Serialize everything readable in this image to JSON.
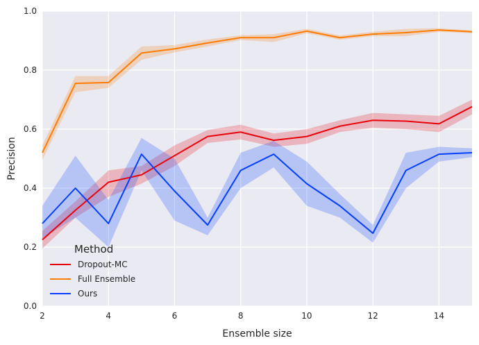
{
  "chart_data": {
    "type": "line",
    "title": "",
    "xlabel": "Ensemble size",
    "ylabel": "Precision",
    "xlim": [
      2,
      15
    ],
    "ylim": [
      0.0,
      1.0
    ],
    "xticks": [
      2,
      4,
      6,
      8,
      10,
      12,
      14
    ],
    "yticks": [
      0.0,
      0.2,
      0.4,
      0.6,
      0.8,
      1.0
    ],
    "xtick_labels": [
      "2",
      "4",
      "6",
      "8",
      "10",
      "12",
      "14"
    ],
    "ytick_labels": [
      "0.0",
      "0.2",
      "0.4",
      "0.6",
      "0.8",
      "1.0"
    ],
    "grid": true,
    "legend": {
      "title": "Method",
      "placement": "lower-left"
    },
    "x": [
      2,
      3,
      4,
      5,
      6,
      7,
      8,
      9,
      10,
      11,
      12,
      13,
      14,
      15
    ],
    "series": [
      {
        "name": "Dropout-MC",
        "color": "#e8000b",
        "values": [
          0.225,
          0.325,
          0.42,
          0.445,
          0.51,
          0.575,
          0.59,
          0.562,
          0.575,
          0.61,
          0.63,
          0.627,
          0.618,
          0.676
        ],
        "lower": [
          0.195,
          0.3,
          0.37,
          0.415,
          0.475,
          0.553,
          0.565,
          0.54,
          0.55,
          0.59,
          0.605,
          0.6,
          0.59,
          0.65
        ],
        "upper": [
          0.255,
          0.355,
          0.46,
          0.475,
          0.545,
          0.597,
          0.615,
          0.585,
          0.6,
          0.63,
          0.655,
          0.65,
          0.645,
          0.7
        ]
      },
      {
        "name": "Full Ensemble",
        "color": "#ff7c00",
        "values": [
          0.52,
          0.755,
          0.758,
          0.858,
          0.872,
          0.892,
          0.91,
          0.91,
          0.932,
          0.91,
          0.922,
          0.927,
          0.936,
          0.93
        ],
        "lower": [
          0.495,
          0.725,
          0.74,
          0.835,
          0.86,
          0.88,
          0.902,
          0.895,
          0.925,
          0.903,
          0.915,
          0.915,
          0.93,
          0.925
        ],
        "upper": [
          0.545,
          0.78,
          0.78,
          0.88,
          0.885,
          0.904,
          0.918,
          0.922,
          0.94,
          0.917,
          0.93,
          0.94,
          0.942,
          0.935
        ]
      },
      {
        "name": "Ours",
        "color": "#023eff",
        "values": [
          0.28,
          0.4,
          0.28,
          0.515,
          0.39,
          0.275,
          0.46,
          0.515,
          0.415,
          0.34,
          0.247,
          0.46,
          0.515,
          0.52
        ],
        "lower": [
          0.23,
          0.3,
          0.2,
          0.46,
          0.29,
          0.24,
          0.4,
          0.47,
          0.34,
          0.3,
          0.215,
          0.4,
          0.49,
          0.505
        ],
        "upper": [
          0.34,
          0.51,
          0.36,
          0.57,
          0.5,
          0.3,
          0.52,
          0.56,
          0.49,
          0.38,
          0.275,
          0.52,
          0.54,
          0.535
        ]
      }
    ]
  }
}
